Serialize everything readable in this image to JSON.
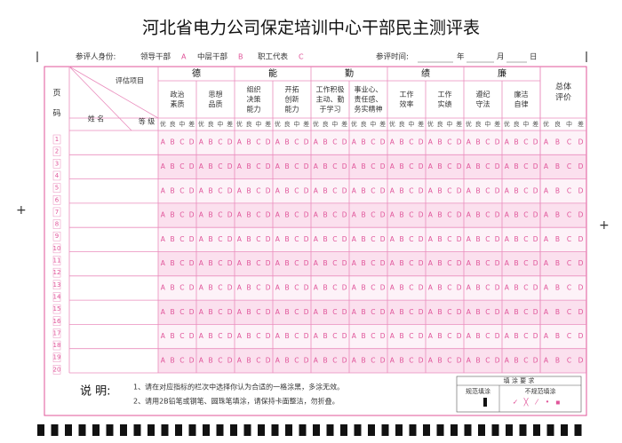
{
  "title": "河北省电力公司保定培训中心干部民主测评表",
  "respondent": {
    "label": "参评人身份:",
    "options": [
      {
        "label": "领导干部",
        "code": "A"
      },
      {
        "label": "中层干部",
        "code": "B"
      },
      {
        "label": "职工代表",
        "code": "C"
      }
    ]
  },
  "time": {
    "label": "参评时间:",
    "year": "年",
    "month": "月",
    "day": "日"
  },
  "table": {
    "page_label": [
      "页",
      "码"
    ],
    "item_label": "评估项目",
    "name_label": "姓 名",
    "grade_label": "等 级",
    "groups": [
      {
        "name": "德",
        "items": [
          [
            "政治",
            "素质"
          ],
          [
            "思想",
            "品质"
          ]
        ]
      },
      {
        "name": "能",
        "items": [
          [
            "组织",
            "决策",
            "能力"
          ],
          [
            "开拓",
            "创新",
            "能力"
          ]
        ]
      },
      {
        "name": "勤",
        "items": [
          [
            "工作积极",
            "主动、勤",
            "于学习"
          ],
          [
            "事业心、",
            "责任感、",
            "务实精神"
          ]
        ]
      },
      {
        "name": "绩",
        "items": [
          [
            "工作",
            "效率"
          ],
          [
            "工作",
            "实绩"
          ]
        ]
      },
      {
        "name": "廉",
        "items": [
          [
            "遵纪",
            "守法"
          ],
          [
            "廉洁",
            "自律"
          ]
        ]
      }
    ],
    "overall": [
      "总体",
      "评价"
    ],
    "grades": [
      "优",
      "良",
      "中",
      "差"
    ],
    "bubbles": [
      "A",
      "B",
      "C",
      "D"
    ],
    "page_numbers": [
      "1",
      "2",
      "3",
      "4",
      "5",
      "6",
      "7",
      "8",
      "9",
      "10",
      "11",
      "12",
      "13",
      "14",
      "15",
      "16",
      "17",
      "18",
      "19",
      "20"
    ]
  },
  "notes": {
    "label": "说 明:",
    "lines": [
      "1、请在对应指标的栏次中选择你认为合适的一格涂黑，多涂无效。",
      "2、请用2B铅笔或钢笔、圆珠笔填涂，请保持卡面整洁，勿折叠。"
    ],
    "fill_title": "填 涂 要 求",
    "correct": "规范填涂",
    "incorrect": "不规范填涂"
  }
}
